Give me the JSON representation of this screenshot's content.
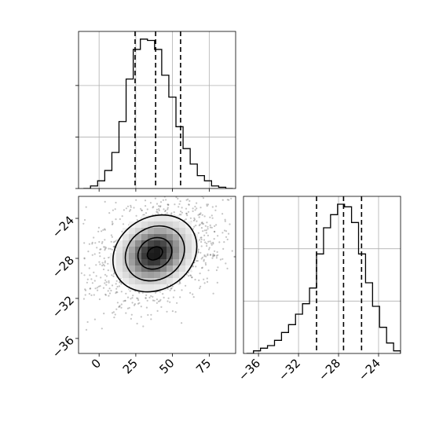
{
  "chart_data": {
    "type": "corner",
    "grid": true,
    "panels": [
      {
        "id": "hist-x",
        "type": "histogram",
        "parameter": "x",
        "xlim": [
          -14,
          93
        ],
        "bin_edges": [
          -10.7,
          -5.85,
          -1.0,
          3.85,
          8.7,
          13.55,
          18.4,
          23.25,
          28.1,
          32.95,
          37.8,
          42.65,
          47.5,
          52.35,
          57.2,
          62.05,
          66.9,
          71.75,
          76.6,
          81.45,
          86.3,
          91.15
        ],
        "counts": [
          0,
          2,
          6,
          14,
          28,
          52,
          85,
          108,
          116,
          115,
          108,
          88,
          71,
          48,
          31,
          19,
          10,
          6,
          2,
          1,
          0
        ],
        "count_max": 122,
        "quantiles": [
          24.5,
          38.5,
          55.5
        ],
        "xticks": [
          0,
          25,
          50,
          75
        ],
        "yticks": [
          0,
          40,
          80
        ],
        "tick_labels_shown": false
      },
      {
        "id": "hist-y",
        "type": "histogram",
        "parameter": "y",
        "xlim": [
          -37.5,
          -21.8
        ],
        "bin_edges": [
          -37.2,
          -36.5,
          -35.8,
          -35.1,
          -34.4,
          -33.7,
          -33.0,
          -32.3,
          -31.6,
          -30.9,
          -30.2,
          -29.5,
          -28.8,
          -28.1,
          -27.4,
          -26.7,
          -26.0,
          -25.3,
          -24.6,
          -23.9,
          -23.2,
          -22.5,
          -21.8
        ],
        "counts": [
          0,
          2,
          4,
          6,
          10,
          16,
          22,
          30,
          38,
          50,
          76,
          96,
          106,
          114,
          112,
          100,
          76,
          54,
          36,
          20,
          8,
          2
        ],
        "count_max": 120,
        "quantiles": [
          -30.2,
          -27.5,
          -25.7
        ],
        "xticks": [
          -36,
          -32,
          -28,
          -24
        ],
        "xtick_labels": [
          "−36",
          "−32",
          "−28",
          "−24"
        ],
        "yticks": [
          40,
          80
        ],
        "tick_labels_shown": true
      },
      {
        "id": "joint-xy",
        "type": "2d-density",
        "x_parameter": "x",
        "y_parameter": "y",
        "xlim": [
          -14,
          93
        ],
        "ylim": [
          -37.5,
          -21.8
        ],
        "xticks": [
          0,
          25,
          50,
          75
        ],
        "xtick_labels": [
          "0",
          "25",
          "50",
          "75"
        ],
        "yticks": [
          -24,
          -28,
          -32,
          -36
        ],
        "ytick_labels": [
          "−24",
          "−28",
          "−32",
          "−36"
        ],
        "center": [
          38,
          -27.5
        ],
        "contour_levels": [
          {
            "rx": 30,
            "ry": 3.6,
            "angle": -32
          },
          {
            "rx": 21,
            "ry": 2.6,
            "angle": -32
          },
          {
            "rx": 12,
            "ry": 1.5,
            "angle": -32
          },
          {
            "rx": 5.5,
            "ry": 0.6,
            "angle": -30
          }
        ]
      }
    ]
  }
}
